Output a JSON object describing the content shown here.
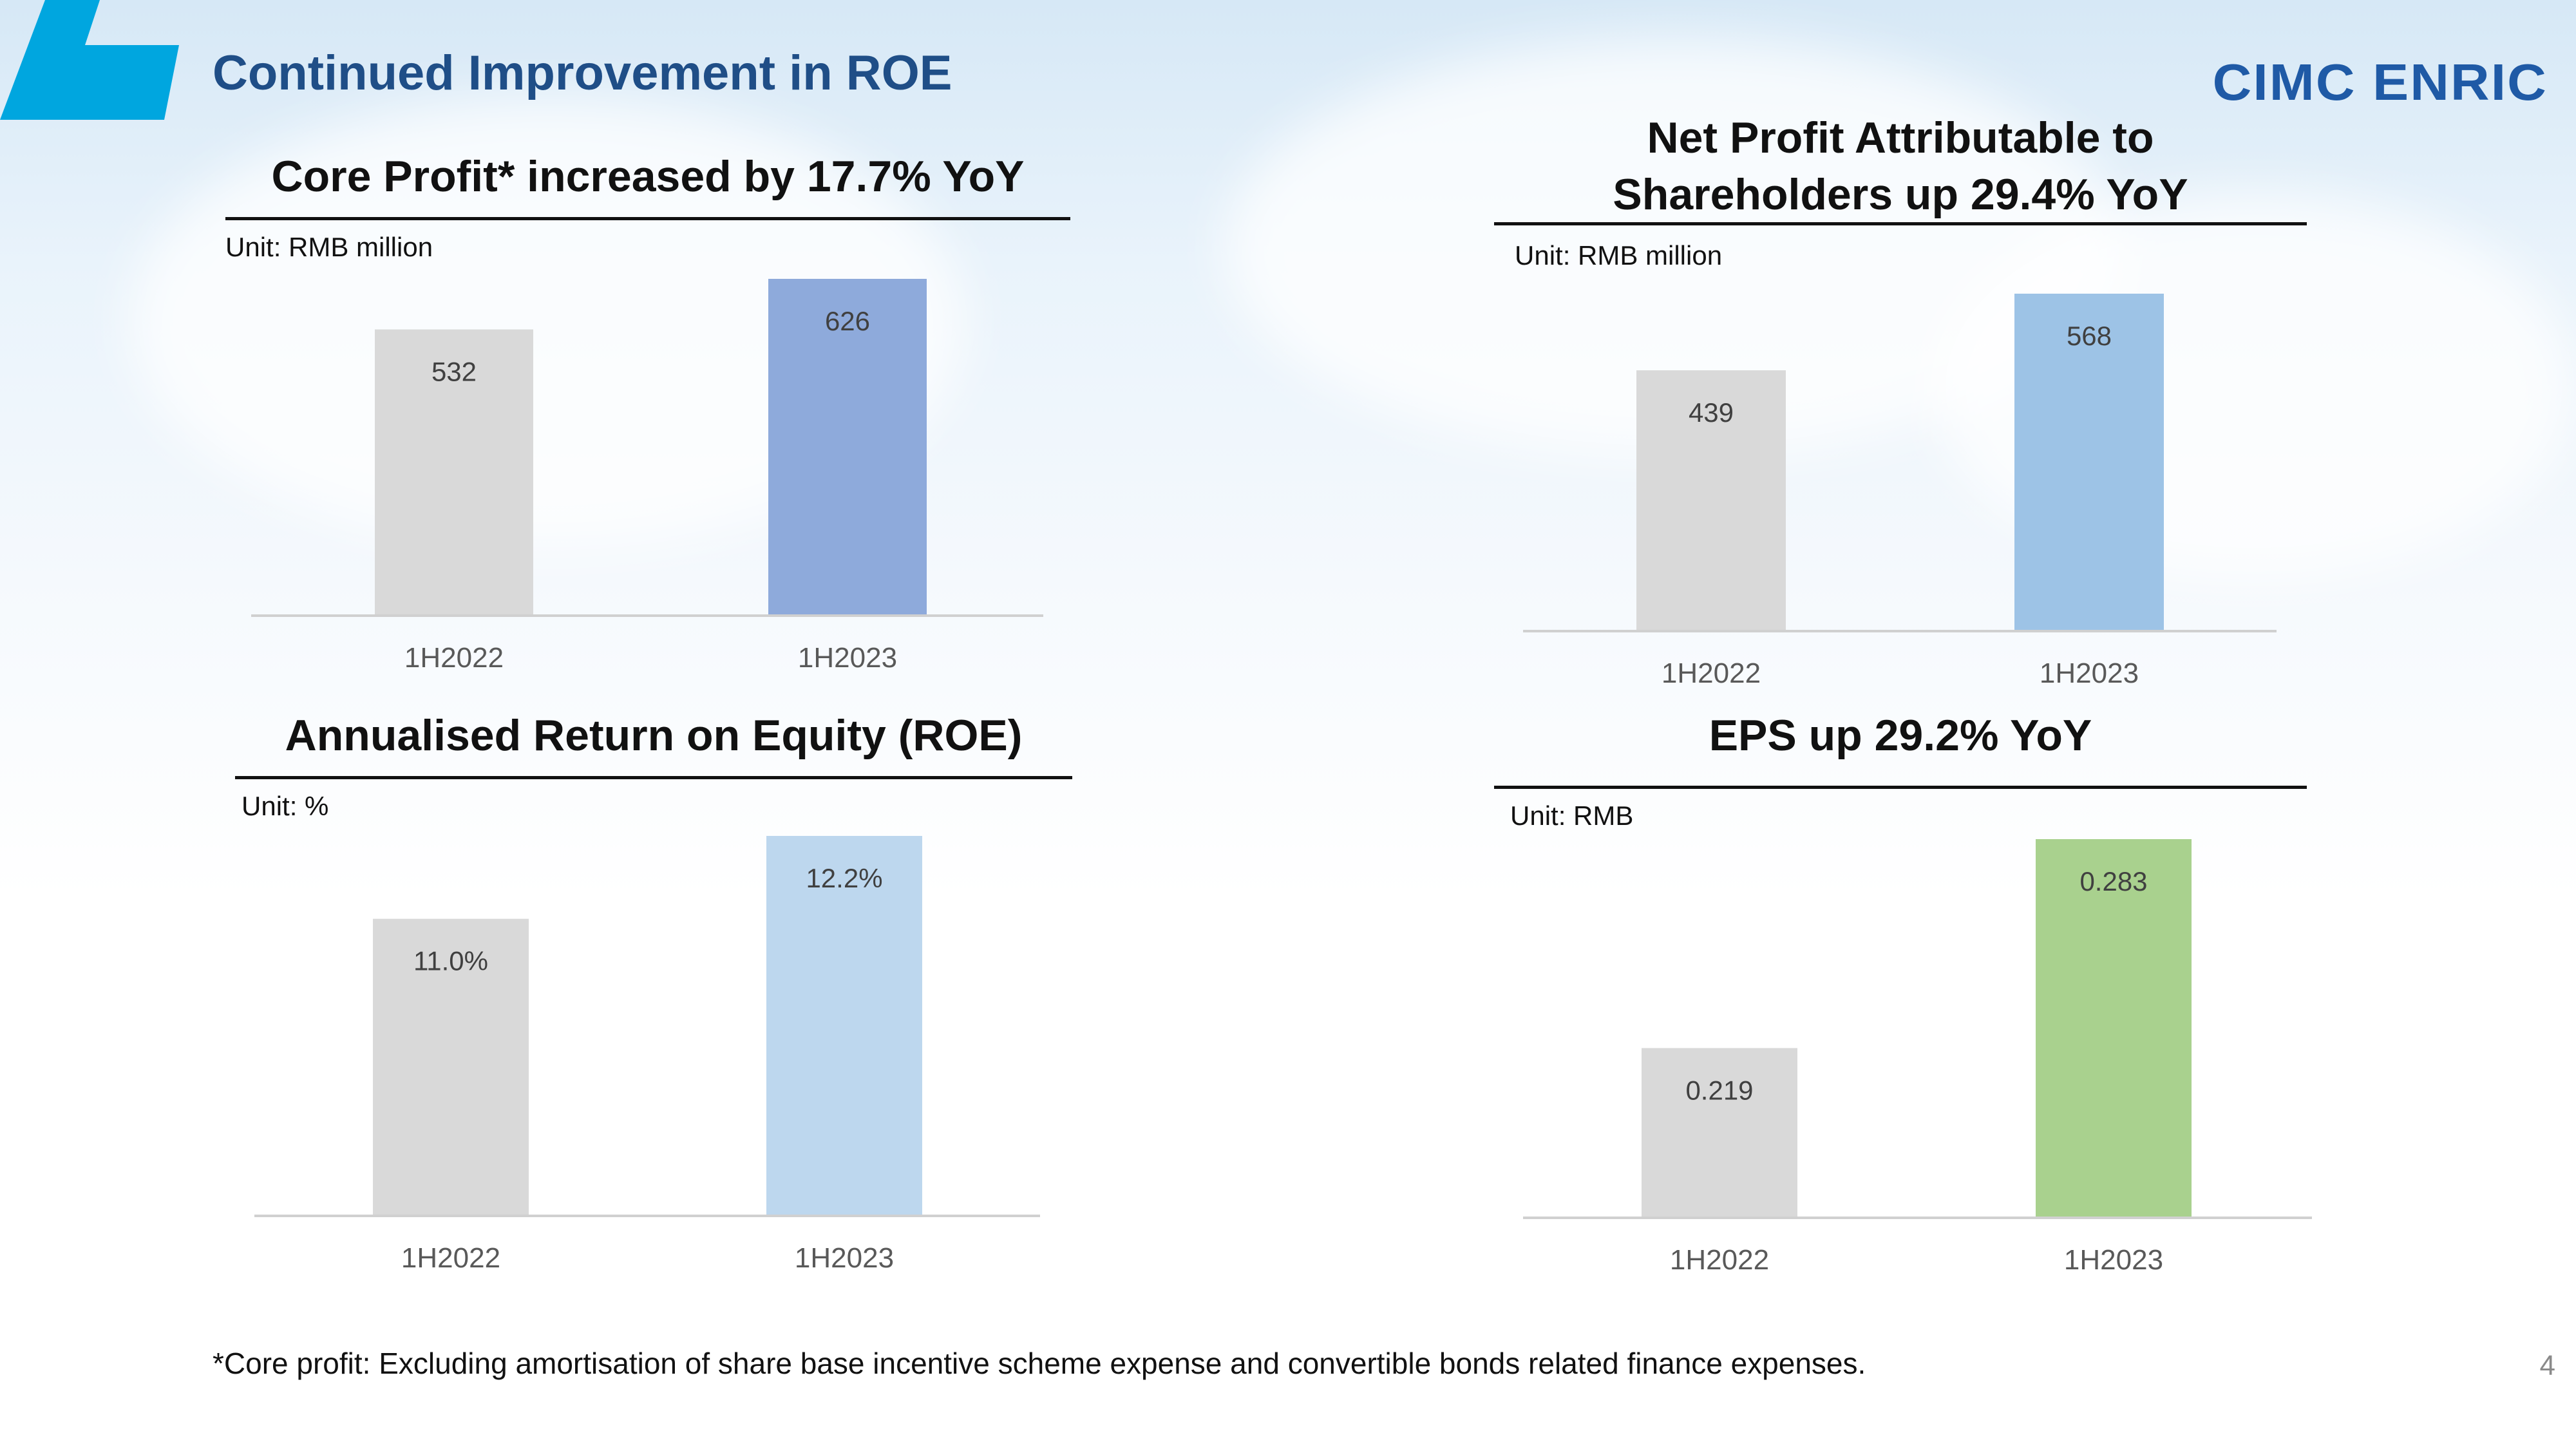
{
  "header": {
    "title": "Continued Improvement in ROE",
    "logo_text": "CIMC ENRIC",
    "accent_color": "#00a6df",
    "title_color": "#1f4e87"
  },
  "panels": [
    {
      "title_lines": [
        "Core Profit* increased by 17.7% YoY"
      ],
      "unit": "Unit: RMB million"
    },
    {
      "title_lines": [
        "Net Profit Attributable to",
        "Shareholders up 29.4% YoY"
      ],
      "unit": "Unit: RMB million"
    },
    {
      "title_lines": [
        "Annualised Return on Equity (ROE)"
      ],
      "unit": "Unit: %"
    },
    {
      "title_lines": [
        "EPS up 29.2% YoY"
      ],
      "unit": "Unit: RMB"
    }
  ],
  "chart_data": [
    {
      "type": "bar",
      "title": "Core Profit* increased by 17.7% YoY",
      "ylabel": "",
      "categories": [
        "1H2022",
        "1H2023"
      ],
      "values": [
        532,
        626
      ],
      "labels": [
        "532",
        "626"
      ],
      "colors": [
        "#d9d9d9",
        "#8eaadb"
      ],
      "ylim": [
        0,
        626
      ],
      "grid": false
    },
    {
      "type": "bar",
      "title": "Net Profit Attributable to Shareholders up 29.4% YoY",
      "ylabel": "",
      "categories": [
        "1H2022",
        "1H2023"
      ],
      "values": [
        439,
        568
      ],
      "labels": [
        "439",
        "568"
      ],
      "colors": [
        "#d9d9d9",
        "#9dc3e6"
      ],
      "ylim": [
        0,
        568
      ],
      "grid": false
    },
    {
      "type": "bar",
      "title": "Annualised Return on Equity (ROE)",
      "ylabel": "",
      "categories": [
        "1H2022",
        "1H2023"
      ],
      "values": [
        11.0,
        12.2
      ],
      "labels": [
        "11.0%",
        "12.2%"
      ],
      "colors": [
        "#d9d9d9",
        "#bdd7ee"
      ],
      "ylim": [
        6.7,
        12.2
      ],
      "grid": false
    },
    {
      "type": "bar",
      "title": "EPS up 29.2% YoY",
      "ylabel": "",
      "categories": [
        "1H2022",
        "1H2023"
      ],
      "values": [
        0.219,
        0.283
      ],
      "labels": [
        "0.219",
        "0.283"
      ],
      "colors": [
        "#d9d9d9",
        "#a9d18e"
      ],
      "ylim": [
        0.167,
        0.283
      ],
      "grid": false
    }
  ],
  "footnote": "*Core profit: Excluding amortisation of share base incentive scheme expense and convertible bonds related finance expenses.",
  "page_number": "4"
}
